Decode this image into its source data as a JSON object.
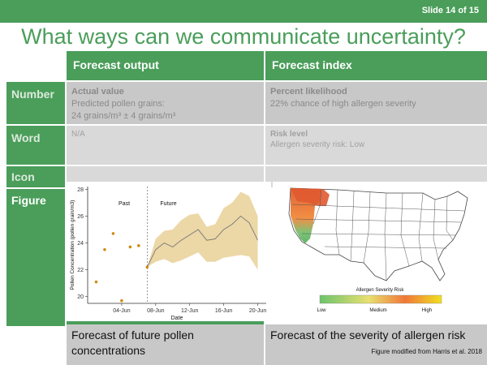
{
  "slide_number": "Slide 14 of 15",
  "title": "What ways can we communicate uncertainty?",
  "columns": [
    "Forecast output",
    "Forecast index"
  ],
  "rows": {
    "number": {
      "label": "Number",
      "output_heading": "Actual value",
      "output_line1": "Predicted pollen grains:",
      "output_line2": "24 grains/m³ ± 4 grains/m³",
      "index_heading": "Percent likelihood",
      "index_text": "22% chance of high allergen severity"
    },
    "word": {
      "label": "Word",
      "output_text": "N/A",
      "index_heading": "Risk level",
      "index_text": "Allergen severity risk: Low"
    },
    "icon": {
      "label": "Icon"
    },
    "figure": {
      "label": "Figure",
      "output_caption": "Forecast of future pollen concentrations",
      "index_caption": "Forecast of the severity of allergen risk",
      "credit": "Figure modified from Harris et al. 2018"
    }
  },
  "map_legend": {
    "title": "Allergen Severity Risk",
    "low": "Low",
    "medium": "Medium",
    "high": "High",
    "colors": [
      "#6cc36c",
      "#e8e070",
      "#f07838",
      "#f0e020"
    ]
  },
  "chart_data": {
    "type": "line",
    "xlabel": "Date",
    "ylabel": "Pollen Concentration (pollen grain/m3)",
    "x_ticks": [
      "04-Jun",
      "08-Jun",
      "12-Jun",
      "16-Jun",
      "20-Jun"
    ],
    "xlim": [
      0,
      21
    ],
    "ylim": [
      19.5,
      28.2
    ],
    "y_ticks": [
      20,
      22,
      24,
      26,
      28
    ],
    "annotations": [
      "Past",
      "Future"
    ],
    "divider_x": 7,
    "past_points": {
      "x": [
        1,
        2,
        3,
        4,
        5,
        6,
        7
      ],
      "y": [
        21.1,
        23.5,
        24.7,
        19.7,
        23.7,
        23.8,
        22.2
      ]
    },
    "forecast": {
      "x": [
        7,
        8,
        9,
        10,
        11,
        12,
        13,
        14,
        15,
        16,
        17,
        18,
        19,
        20
      ],
      "mean": [
        22.2,
        23.5,
        24.0,
        23.7,
        24.2,
        24.6,
        25.0,
        24.2,
        24.3,
        25.0,
        25.4,
        26.0,
        25.5,
        24.2
      ],
      "lower": [
        22.2,
        22.6,
        22.8,
        22.5,
        22.7,
        23.0,
        23.3,
        22.6,
        22.6,
        22.9,
        23.0,
        23.1,
        23.0,
        22.0
      ],
      "upper": [
        22.2,
        24.3,
        24.9,
        25.0,
        25.7,
        26.1,
        26.2,
        25.2,
        25.4,
        26.6,
        27.0,
        27.8,
        27.5,
        26.0
      ]
    },
    "colors": {
      "points": "#d08c10",
      "band": "#ecd7a6",
      "line": "#777777"
    }
  }
}
